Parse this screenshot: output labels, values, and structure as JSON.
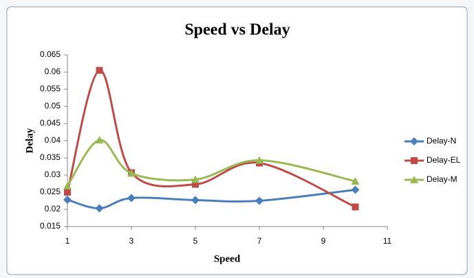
{
  "chart_data": {
    "type": "line",
    "title": "Speed vs Delay",
    "x_label": "Speed",
    "y_label": "Delay",
    "x": [
      1,
      2,
      3,
      5,
      7,
      10
    ],
    "series": [
      {
        "name": "Delay-N",
        "color": "#4a7ebb",
        "marker": "diamond",
        "values": [
          0.0228,
          0.0203,
          0.0233,
          0.0227,
          0.0225,
          0.0257
        ]
      },
      {
        "name": "Delay-EL",
        "color": "#be4b48",
        "marker": "square",
        "values": [
          0.025,
          0.0605,
          0.0307,
          0.0273,
          0.0335,
          0.0207
        ]
      },
      {
        "name": "Delay-M",
        "color": "#98b954",
        "marker": "triangle",
        "values": [
          0.0268,
          0.0402,
          0.0305,
          0.0287,
          0.0343,
          0.0282
        ]
      }
    ],
    "xlim": [
      1,
      11
    ],
    "xticks": [
      1,
      3,
      5,
      7,
      9,
      11
    ],
    "ylim": [
      0.015,
      0.065
    ],
    "yticks": [
      0.015,
      0.02,
      0.025,
      0.03,
      0.035,
      0.04,
      0.045,
      0.05,
      0.055,
      0.06,
      0.065
    ],
    "smooth": true,
    "grid": false,
    "legend": "right"
  }
}
